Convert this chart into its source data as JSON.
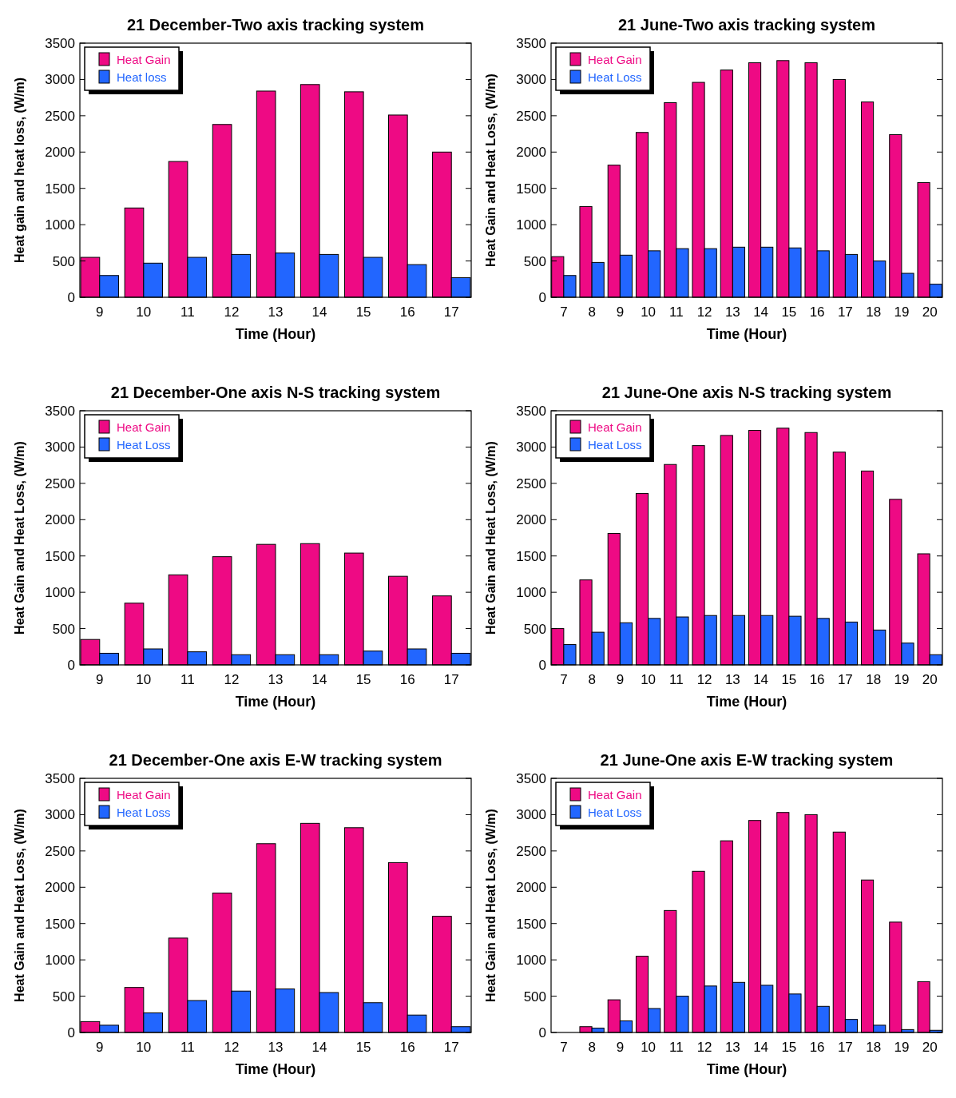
{
  "chart_data": [
    {
      "type": "bar",
      "title": "21 December-Two axis tracking system",
      "xlabel": "Time (Hour)",
      "ylabel": "Heat gain and heat loss, (W/m)",
      "categories": [
        "9",
        "10",
        "11",
        "12",
        "13",
        "14",
        "15",
        "16",
        "17"
      ],
      "ylim": [
        0,
        3500
      ],
      "yticks": [
        0,
        500,
        1000,
        1500,
        2000,
        2500,
        3000,
        3500
      ],
      "legend": "top left",
      "series": [
        {
          "name": "Heat Gain",
          "color": "#ee0a84",
          "values": [
            550,
            1230,
            1870,
            2380,
            2840,
            2930,
            2830,
            2510,
            2000
          ]
        },
        {
          "name": "Heat loss",
          "color": "#2266ff",
          "values": [
            300,
            470,
            550,
            590,
            610,
            590,
            550,
            450,
            270
          ]
        }
      ]
    },
    {
      "type": "bar",
      "title": "21 June-Two axis tracking system",
      "xlabel": "Time (Hour)",
      "ylabel": "Heat Gain and Heat Loss, (W/m)",
      "categories": [
        "7",
        "8",
        "9",
        "10",
        "11",
        "12",
        "13",
        "14",
        "15",
        "16",
        "17",
        "18",
        "19",
        "20"
      ],
      "ylim": [
        0,
        3500
      ],
      "yticks": [
        0,
        500,
        1000,
        1500,
        2000,
        2500,
        3000,
        3500
      ],
      "legend": "top left",
      "series": [
        {
          "name": "Heat Gain",
          "color": "#ee0a84",
          "values": [
            560,
            1250,
            1820,
            2270,
            2680,
            2960,
            3130,
            3230,
            3260,
            3230,
            3000,
            2690,
            2240,
            1580
          ]
        },
        {
          "name": "Heat Loss",
          "color": "#2266ff",
          "values": [
            300,
            480,
            580,
            640,
            670,
            670,
            690,
            690,
            680,
            640,
            590,
            500,
            330,
            180
          ]
        }
      ]
    },
    {
      "type": "bar",
      "title": "21 December-One axis N-S tracking system",
      "xlabel": "Time (Hour)",
      "ylabel": "Heat Gain and Heat Loss, (W/m)",
      "categories": [
        "9",
        "10",
        "11",
        "12",
        "13",
        "14",
        "15",
        "16",
        "17"
      ],
      "ylim": [
        0,
        3500
      ],
      "yticks": [
        0,
        500,
        1000,
        1500,
        2000,
        2500,
        3000,
        3500
      ],
      "legend": "top left",
      "series": [
        {
          "name": "Heat Gain",
          "color": "#ee0a84",
          "values": [
            350,
            850,
            1240,
            1490,
            1660,
            1670,
            1540,
            1220,
            950
          ]
        },
        {
          "name": "Heat Loss",
          "color": "#2266ff",
          "values": [
            160,
            220,
            180,
            140,
            140,
            140,
            190,
            220,
            160
          ]
        }
      ]
    },
    {
      "type": "bar",
      "title": "21 June-One axis N-S tracking system",
      "xlabel": "Time (Hour)",
      "ylabel": "Heat Gain and Heat Loss, (W/m)",
      "categories": [
        "7",
        "8",
        "9",
        "10",
        "11",
        "12",
        "13",
        "14",
        "15",
        "16",
        "17",
        "18",
        "19",
        "20"
      ],
      "ylim": [
        0,
        3500
      ],
      "yticks": [
        0,
        500,
        1000,
        1500,
        2000,
        2500,
        3000,
        3500
      ],
      "legend": "top left",
      "series": [
        {
          "name": "Heat Gain",
          "color": "#ee0a84",
          "values": [
            500,
            1170,
            1810,
            2360,
            2760,
            3020,
            3160,
            3230,
            3260,
            3200,
            2930,
            2670,
            2280,
            1530
          ]
        },
        {
          "name": "Heat Loss",
          "color": "#2266ff",
          "values": [
            280,
            450,
            580,
            640,
            660,
            680,
            680,
            680,
            670,
            640,
            590,
            480,
            300,
            140
          ]
        }
      ]
    },
    {
      "type": "bar",
      "title": "21 December-One axis E-W tracking system",
      "xlabel": "Time (Hour)",
      "ylabel": "Heat Gain and Heat Loss, (W/m)",
      "categories": [
        "9",
        "10",
        "11",
        "12",
        "13",
        "14",
        "15",
        "16",
        "17"
      ],
      "ylim": [
        0,
        3500
      ],
      "yticks": [
        0,
        500,
        1000,
        1500,
        2000,
        2500,
        3000,
        3500
      ],
      "legend": "top left",
      "series": [
        {
          "name": "Heat Gain",
          "color": "#ee0a84",
          "values": [
            150,
            620,
            1300,
            1920,
            2600,
            2880,
            2820,
            2340,
            1600
          ]
        },
        {
          "name": "Heat Loss",
          "color": "#2266ff",
          "values": [
            100,
            270,
            440,
            570,
            600,
            550,
            410,
            240,
            80
          ]
        }
      ]
    },
    {
      "type": "bar",
      "title": "21 June-One axis E-W tracking system",
      "xlabel": "Time (Hour)",
      "ylabel": "Heat Gain and Heat Loss, (W/m)",
      "categories": [
        "7",
        "8",
        "9",
        "10",
        "11",
        "12",
        "13",
        "14",
        "15",
        "16",
        "17",
        "18",
        "19",
        "20"
      ],
      "ylim": [
        0,
        3500
      ],
      "yticks": [
        0,
        500,
        1000,
        1500,
        2000,
        2500,
        3000,
        3500
      ],
      "legend": "top left",
      "series": [
        {
          "name": "Heat Gain",
          "color": "#ee0a84",
          "values": [
            0,
            80,
            450,
            1050,
            1680,
            2220,
            2640,
            2920,
            3030,
            3000,
            2760,
            2100,
            1520,
            700
          ]
        },
        {
          "name": "Heat Loss",
          "color": "#2266ff",
          "values": [
            0,
            60,
            160,
            330,
            500,
            640,
            690,
            650,
            530,
            360,
            180,
            100,
            40,
            30
          ]
        }
      ]
    }
  ]
}
